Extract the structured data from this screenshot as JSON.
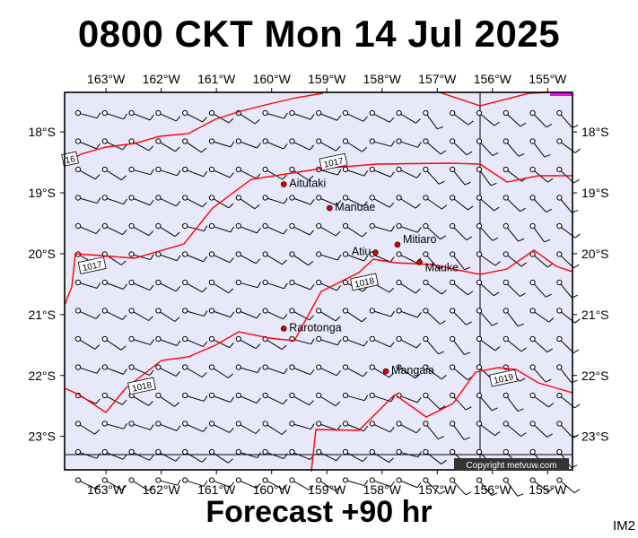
{
  "header": {
    "title": "0800 CKT Mon 14 Jul 2025"
  },
  "footer": {
    "forecast": "Forecast +90 hr",
    "code": "IM2"
  },
  "map": {
    "lon_ticks": [
      "163°W",
      "162°W",
      "161°W",
      "160°W",
      "159°W",
      "158°W",
      "157°W",
      "156°W",
      "155°W"
    ],
    "lat_ticks": [
      "18°S",
      "19°S",
      "20°S",
      "21°S",
      "22°S",
      "23°S"
    ],
    "lon_values": [
      -163,
      -162,
      -161,
      -160,
      -159,
      -158,
      -157,
      -156,
      -155
    ],
    "lat_values": [
      -18,
      -19,
      -20,
      -21,
      -22,
      -23
    ],
    "extent": {
      "lon_min": -163.75,
      "lon_max": -154.55,
      "lat_min": -23.55,
      "lat_max": -17.35
    },
    "colors": {
      "ocean": "#e8e8fb",
      "isobar": "#ff0000",
      "barb": "#000000",
      "high_pressure_patch": "#ff00ff"
    },
    "places": [
      {
        "name": "Aitutaki",
        "lon": -159.78,
        "lat": -18.86
      },
      {
        "name": "Manuae",
        "lon": -158.95,
        "lat": -19.25
      },
      {
        "name": "Atiu",
        "lon": -158.12,
        "lat": -19.98
      },
      {
        "name": "Mitiaro",
        "lon": -157.72,
        "lat": -19.85
      },
      {
        "name": "Mauke",
        "lon": -157.32,
        "lat": -20.14
      },
      {
        "name": "Rarotonga",
        "lon": -159.78,
        "lat": -21.23
      },
      {
        "name": "Mangaia",
        "lon": -157.93,
        "lat": -21.93
      }
    ],
    "isobar_labels": [
      {
        "text": "16",
        "lon": -163.65,
        "lat": -18.45
      },
      {
        "text": "1017",
        "lon": -158.88,
        "lat": -18.5
      },
      {
        "text": "1017",
        "lon": -163.25,
        "lat": -20.2
      },
      {
        "text": "1018",
        "lon": -158.32,
        "lat": -20.47
      },
      {
        "text": "1018",
        "lon": -162.35,
        "lat": -22.18
      },
      {
        "text": "1019",
        "lon": -155.8,
        "lat": -22.05
      }
    ],
    "copyright": "Copyright metvuw.com"
  }
}
